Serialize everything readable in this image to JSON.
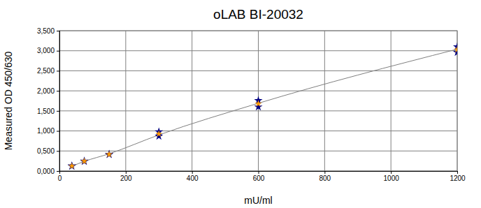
{
  "chart_data": {
    "type": "scatter",
    "title": "oLAB BI-20032",
    "x_label": "mU/ml",
    "y_label": "Measured OD 450/630",
    "x": [
      37.5,
      75,
      150,
      300,
      600,
      1200
    ],
    "series": [
      {
        "type": "scatter",
        "color": "#000080",
        "marker": "star",
        "values": [
          0.12,
          0.24,
          0.41,
          0.87,
          1.6,
          2.96
        ]
      },
      {
        "type": "scatter",
        "color": "#000080",
        "marker": "star",
        "values": [
          0.13,
          0.25,
          0.42,
          0.98,
          1.76,
          3.1
        ]
      },
      {
        "type": "scatter",
        "color": "#ff9900",
        "marker": "star",
        "values": [
          0.125,
          0.245,
          0.415,
          0.925,
          1.68,
          3.03
        ]
      },
      {
        "type": "line",
        "color": "#808080",
        "line_style": "solid",
        "values": [
          0.12,
          0.24,
          0.43,
          0.9,
          1.69,
          3.04
        ]
      }
    ],
    "xlim": [
      0,
      1200
    ],
    "xticks": [
      0,
      200,
      400,
      600,
      800,
      1000,
      1200
    ],
    "ylim": [
      0,
      3.5
    ],
    "yticks": [
      {
        "value": 0,
        "label": "0,000"
      },
      {
        "value": 0.5,
        "label": "0,500"
      },
      {
        "value": 1,
        "label": "1,000"
      },
      {
        "value": 1.5,
        "label": "1,500"
      },
      {
        "value": 2,
        "label": "2,000"
      },
      {
        "value": 2.5,
        "label": "2,500"
      },
      {
        "value": 3,
        "label": "3,000"
      },
      {
        "value": 3.5,
        "label": "3,500"
      }
    ],
    "grid": true
  }
}
